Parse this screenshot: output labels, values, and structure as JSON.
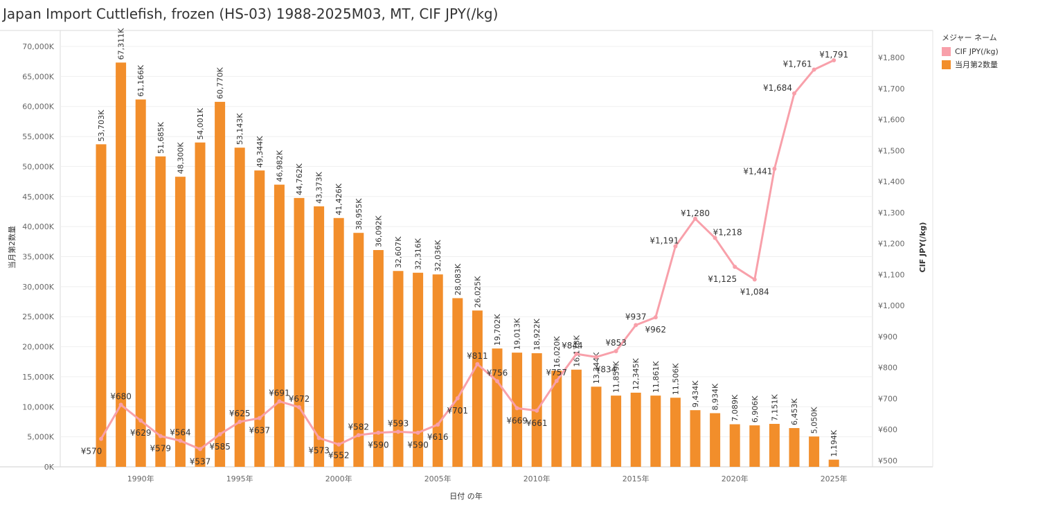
{
  "title": "Japan Import Cuttlefish, frozen (HS-03) 1988-2025M03, MT, CIF JPY(/kg)",
  "legend": {
    "title": "メジャー ネーム",
    "items": [
      {
        "label": "CIF JPY(/kg)",
        "color": "#f8a0aa"
      },
      {
        "label": "当月第2数量",
        "color": "#f28e2b"
      }
    ]
  },
  "chart_data": {
    "type": "bar+line",
    "xlabel": "日付 の年",
    "ylabel_left": "当月第2数量",
    "ylabel_right": "CIF JPY(/kg)",
    "y_left_range": [
      0,
      70000
    ],
    "y_right_range": [
      500,
      1800
    ],
    "grid": true,
    "legend_position": "top-right",
    "x_ticks": [
      "1990年",
      "1995年",
      "2000年",
      "2005年",
      "2010年",
      "2015年",
      "2020年",
      "2025年"
    ],
    "y_left_ticks": [
      "0K",
      "5,000K",
      "10,000K",
      "15,000K",
      "20,000K",
      "25,000K",
      "30,000K",
      "35,000K",
      "40,000K",
      "45,000K",
      "50,000K",
      "55,000K",
      "60,000K",
      "65,000K",
      "70,000K"
    ],
    "y_right_ticks": [
      "¥500",
      "¥600",
      "¥700",
      "¥800",
      "¥900",
      "¥1,000",
      "¥1,100",
      "¥1,200",
      "¥1,300",
      "¥1,400",
      "¥1,500",
      "¥1,600",
      "¥1,700",
      "¥1,800"
    ],
    "years": [
      1988,
      1989,
      1990,
      1991,
      1992,
      1993,
      1994,
      1995,
      1996,
      1997,
      1998,
      1999,
      2000,
      2001,
      2002,
      2003,
      2004,
      2005,
      2006,
      2007,
      2008,
      2009,
      2010,
      2011,
      2012,
      2013,
      2014,
      2015,
      2016,
      2017,
      2018,
      2019,
      2020,
      2021,
      2022,
      2023,
      2024,
      2025
    ],
    "series": [
      {
        "name": "当月第2数量",
        "type": "bar",
        "color": "#f28e2b",
        "values": [
          53703,
          67311,
          61166,
          51685,
          48300,
          54001,
          60770,
          53143,
          49344,
          46982,
          44762,
          43373,
          41426,
          38955,
          36092,
          32607,
          32316,
          32036,
          28083,
          26025,
          19702,
          19013,
          18922,
          16020,
          16178,
          13344,
          11859,
          12345,
          11861,
          11506,
          9434,
          8934,
          7089,
          6906,
          7151,
          6453,
          5050,
          1194
        ],
        "labels": [
          "53,703K",
          "67,311K",
          "61,166K",
          "51,685K",
          "48,300K",
          "54,001K",
          "60,770K",
          "53,143K",
          "49,344K",
          "46,982K",
          "44,762K",
          "43,373K",
          "41,426K",
          "38,955K",
          "36,092K",
          "32,607K",
          "32,316K",
          "32,036K",
          "28,083K",
          "26,025K",
          "19,702K",
          "19,013K",
          "18,922K",
          "16,020K",
          "16,178K",
          "13,344K",
          "11,859K",
          "12,345K",
          "11,861K",
          "11,506K",
          "9,434K",
          "8,934K",
          "7,089K",
          "6,906K",
          "7,151K",
          "6,453K",
          "5,050K",
          "1,194K"
        ]
      },
      {
        "name": "CIF JPY(/kg)",
        "type": "line",
        "color": "#f8a0aa",
        "values": [
          570,
          680,
          629,
          579,
          564,
          537,
          585,
          625,
          637,
          691,
          672,
          573,
          552,
          582,
          590,
          593,
          590,
          616,
          701,
          811,
          756,
          669,
          661,
          757,
          844,
          834,
          853,
          937,
          962,
          1191,
          1280,
          1218,
          1125,
          1084,
          1441,
          1684,
          1761,
          1791
        ],
        "labels": [
          "¥570",
          "¥680",
          "¥629",
          "¥579",
          "¥564",
          "¥537",
          "¥585",
          "¥625",
          "¥637",
          "¥691",
          "¥672",
          "¥573",
          "¥552",
          "¥582",
          "¥590",
          "¥593",
          "¥590",
          "¥616",
          "¥701",
          "¥811",
          "¥756",
          "¥669",
          "¥661",
          "¥757",
          "¥844",
          "¥834",
          "¥853",
          "¥937",
          "¥962",
          "¥1,191",
          "¥1,280",
          "¥1,218",
          "¥1,125",
          "¥1,084",
          "¥1,441",
          "¥1,684",
          "¥1,761",
          "¥1,791"
        ]
      }
    ]
  }
}
